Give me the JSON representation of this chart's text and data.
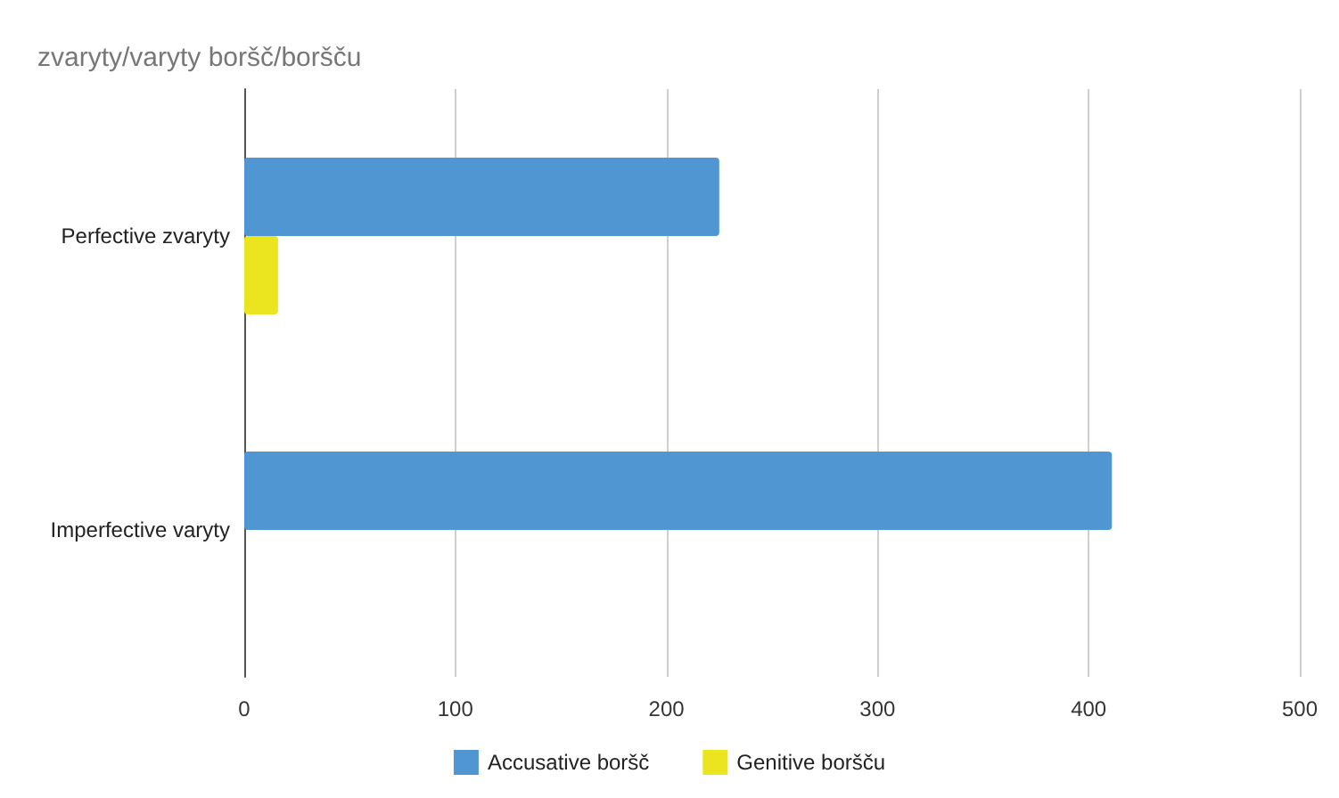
{
  "chart_data": {
    "type": "bar",
    "orientation": "horizontal",
    "title": "zvaryty/varyty boršč/boršču",
    "categories": [
      "Perfective zvaryty",
      "Imperfective varyty"
    ],
    "series": [
      {
        "name": "Accusative boršč",
        "color": "#4f96d2",
        "values": [
          225,
          411
        ]
      },
      {
        "name": "Genitive boršču",
        "color": "#ebe51f",
        "values": [
          16,
          0
        ]
      }
    ],
    "xlim": [
      0,
      500
    ],
    "xticks": [
      0,
      100,
      200,
      300,
      400,
      500
    ],
    "grid": "x",
    "legend": "bottom"
  }
}
